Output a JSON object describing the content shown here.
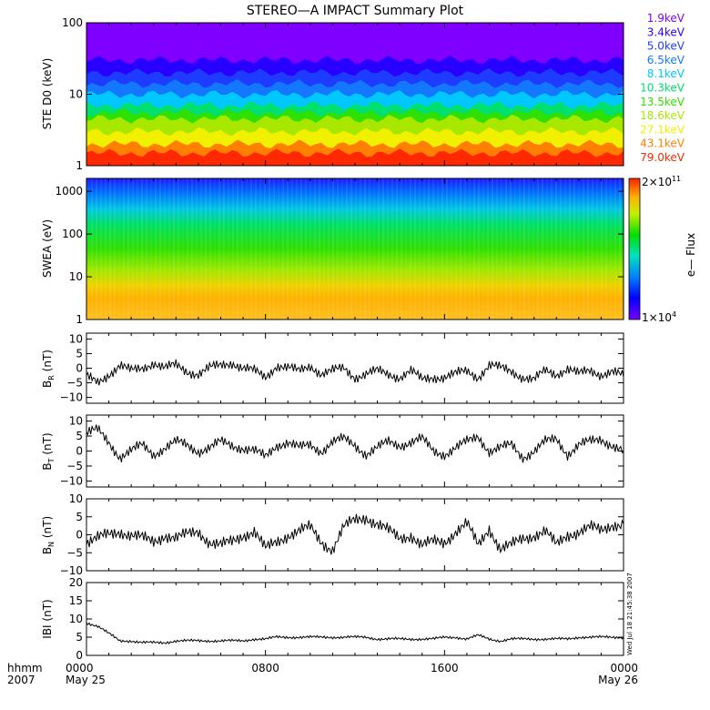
{
  "title": "STEREO—A IMPACT Summary Plot",
  "side_stamp": "Wed Jul 18 21:45:38 2007",
  "time_axis": {
    "row1_label": "hhmm",
    "row2_label": "2007",
    "ticks": [
      {
        "hour": 0,
        "label": "0000",
        "sub": "May 25"
      },
      {
        "hour": 8,
        "label": "0800",
        "sub": ""
      },
      {
        "hour": 16,
        "label": "1600",
        "sub": ""
      },
      {
        "hour": 24,
        "label": "0000",
        "sub": "May 26"
      }
    ]
  },
  "colorbar": {
    "label": "e— Flux",
    "max_label": "2×10",
    "max_exp": "11",
    "min_label": "1×10",
    "min_exp": "4"
  },
  "chart_data": [
    {
      "type": "line",
      "panel": "ste",
      "ylabel": "STE D0 (keV)",
      "yscale": "log",
      "ylim": [
        1,
        100
      ],
      "yticks": [
        {
          "v": 1,
          "label": "1"
        },
        {
          "v": 10,
          "label": "10"
        },
        {
          "v": 100,
          "label": "100"
        }
      ],
      "series": [
        {
          "name": "1.9keV",
          "color": "#8000ff",
          "level": 100
        },
        {
          "name": "3.4keV",
          "color": "#2800ff",
          "level": 30
        },
        {
          "name": "5.0keV",
          "color": "#1e3cff",
          "level": 20
        },
        {
          "name": "6.5keV",
          "color": "#1478ff",
          "level": 14
        },
        {
          "name": "8.1keV",
          "color": "#00c8ff",
          "level": 10
        },
        {
          "name": "10.3keV",
          "color": "#00e070",
          "level": 7
        },
        {
          "name": "13.5keV",
          "color": "#30e000",
          "level": 5.5
        },
        {
          "name": "18.6keV",
          "color": "#a8e800",
          "level": 4.5
        },
        {
          "name": "27.1keV",
          "color": "#f0f000",
          "level": 3
        },
        {
          "name": "43.1keV",
          "color": "#ff8000",
          "level": 2
        },
        {
          "name": "79.0keV",
          "color": "#ff2800",
          "level": 1.5
        }
      ]
    },
    {
      "type": "heatmap",
      "panel": "swea",
      "ylabel": "SWEA (eV)",
      "yscale": "log",
      "ylim": [
        1,
        2000
      ],
      "yticks": [
        {
          "v": 1,
          "label": "1"
        },
        {
          "v": 10,
          "label": "10"
        },
        {
          "v": 100,
          "label": "100"
        },
        {
          "v": 1000,
          "label": "1000"
        }
      ],
      "zscale": "log",
      "zlim": [
        10000,
        200000000000
      ]
    },
    {
      "type": "line",
      "panel": "br",
      "ylabel": "B",
      "ylabel_sub": "R",
      "ylabel_unit": "(nT)",
      "ylim": [
        -12,
        12
      ],
      "yticks": [
        {
          "v": -10,
          "label": "−10"
        },
        {
          "v": -5,
          "label": "−5"
        },
        {
          "v": 0,
          "label": "0"
        },
        {
          "v": 5,
          "label": "5"
        },
        {
          "v": 10,
          "label": "10"
        }
      ],
      "x_hours": [
        0,
        0.5,
        1,
        1.5,
        2,
        2.5,
        3,
        3.5,
        4,
        4.5,
        5,
        5.5,
        6,
        6.5,
        7,
        7.5,
        8,
        8.5,
        9,
        9.5,
        10,
        10.5,
        11,
        11.5,
        12,
        12.5,
        13,
        13.5,
        14,
        14.5,
        15,
        15.5,
        16,
        16.5,
        17,
        17.5,
        18,
        18.5,
        19,
        19.5,
        20,
        20.5,
        21,
        21.5,
        22,
        22.5,
        23,
        23.5,
        24
      ],
      "values": [
        -3,
        -5,
        -2,
        1,
        -1,
        0,
        2,
        0,
        1,
        -1,
        -2,
        0,
        1,
        2,
        0,
        -1,
        -3,
        1,
        0,
        -1,
        1,
        -2,
        -1,
        0,
        -3,
        -2,
        -1,
        -2,
        -3,
        -1,
        -4,
        -3,
        -3,
        -2,
        -1,
        -3,
        1,
        0,
        -1,
        -3,
        -4,
        -1,
        -2,
        0,
        -2,
        -1,
        -2,
        -1,
        -3
      ]
    },
    {
      "type": "line",
      "panel": "bt",
      "ylabel": "B",
      "ylabel_sub": "T",
      "ylabel_unit": "(nT)",
      "ylim": [
        -12,
        12
      ],
      "yticks": [
        {
          "v": -10,
          "label": "−10"
        },
        {
          "v": -5,
          "label": "−5"
        },
        {
          "v": 0,
          "label": "0"
        },
        {
          "v": 5,
          "label": "5"
        },
        {
          "v": 10,
          "label": "10"
        }
      ],
      "x_hours": [
        0,
        0.5,
        1,
        1.5,
        2,
        2.5,
        3,
        3.5,
        4,
        4.5,
        5,
        5.5,
        6,
        6.5,
        7,
        7.5,
        8,
        8.5,
        9,
        9.5,
        10,
        10.5,
        11,
        11.5,
        12,
        12.5,
        13,
        13.5,
        14,
        14.5,
        15,
        15.5,
        16,
        16.5,
        17,
        17.5,
        18,
        18.5,
        19,
        19.5,
        20,
        20.5,
        21,
        21.5,
        22,
        22.5,
        23,
        23.5,
        24
      ],
      "values": [
        6,
        7,
        3,
        -2,
        0,
        2,
        -1,
        1,
        3,
        2,
        0,
        1,
        3,
        2,
        1,
        0,
        -2,
        2,
        3,
        1,
        2,
        0,
        3,
        4,
        2,
        -1,
        1,
        3,
        2,
        3,
        4,
        0,
        -1,
        1,
        3,
        5,
        0,
        1,
        2,
        -2,
        0,
        3,
        4,
        -1,
        2,
        3,
        4,
        2,
        0
      ]
    },
    {
      "type": "line",
      "panel": "bn",
      "ylabel": "B",
      "ylabel_sub": "N",
      "ylabel_unit": "(nT)",
      "ylim": [
        -10,
        10
      ],
      "yticks": [
        {
          "v": -10,
          "label": "−10"
        },
        {
          "v": -5,
          "label": "−5"
        },
        {
          "v": 0,
          "label": "0"
        },
        {
          "v": 5,
          "label": "5"
        },
        {
          "v": 10,
          "label": "10"
        }
      ],
      "x_hours": [
        0,
        0.5,
        1,
        1.5,
        2,
        2.5,
        3,
        3.5,
        4,
        4.5,
        5,
        5.5,
        6,
        6.5,
        7,
        7.5,
        8,
        8.5,
        9,
        9.5,
        10,
        10.5,
        11,
        11.5,
        12,
        12.5,
        13,
        13.5,
        14,
        14.5,
        15,
        15.5,
        16,
        16.5,
        17,
        17.5,
        18,
        18.5,
        19,
        19.5,
        20,
        20.5,
        21,
        21.5,
        22,
        22.5,
        23,
        23.5,
        24
      ],
      "values": [
        -2,
        -1,
        0,
        1,
        0,
        -1,
        -2,
        0,
        -1,
        0,
        1,
        -2,
        -3,
        -2,
        0,
        1,
        -4,
        -2,
        0,
        1,
        2,
        -2,
        -4,
        2,
        4,
        5,
        3,
        1,
        -1,
        0,
        -3,
        -2,
        -2,
        1,
        3,
        -3,
        2,
        -4,
        -3,
        -1,
        0,
        1,
        -3,
        0,
        1,
        2,
        1,
        3,
        3
      ]
    },
    {
      "type": "line",
      "panel": "bmag",
      "ylabel": "IBI (nT)",
      "ylim": [
        0,
        20
      ],
      "yticks": [
        {
          "v": 0,
          "label": "0"
        },
        {
          "v": 5,
          "label": "5"
        },
        {
          "v": 10,
          "label": "10"
        },
        {
          "v": 15,
          "label": "15"
        },
        {
          "v": 20,
          "label": "20"
        }
      ],
      "x_hours": [
        0,
        0.5,
        1,
        1.5,
        2,
        2.5,
        3,
        3.5,
        4,
        4.5,
        5,
        5.5,
        6,
        6.5,
        7,
        7.5,
        8,
        8.5,
        9,
        9.5,
        10,
        10.5,
        11,
        11.5,
        12,
        12.5,
        13,
        13.5,
        14,
        14.5,
        15,
        15.5,
        16,
        16.5,
        17,
        17.5,
        18,
        18.5,
        19,
        19.5,
        20,
        20.5,
        21,
        21.5,
        22,
        22.5,
        23,
        23.5,
        24
      ],
      "values": [
        9,
        8,
        6,
        4,
        4,
        3.5,
        3.5,
        3.5,
        4,
        4,
        4,
        4,
        4,
        4,
        4,
        4.5,
        4.5,
        5,
        5,
        5,
        5,
        5,
        5,
        5,
        5,
        5,
        4.5,
        4.5,
        4.5,
        4.5,
        4.5,
        4.5,
        5,
        5,
        4.5,
        5.5,
        4.5,
        4,
        4.5,
        4.5,
        4.5,
        4.5,
        4.5,
        4.5,
        5,
        5,
        5,
        5,
        5
      ]
    }
  ]
}
